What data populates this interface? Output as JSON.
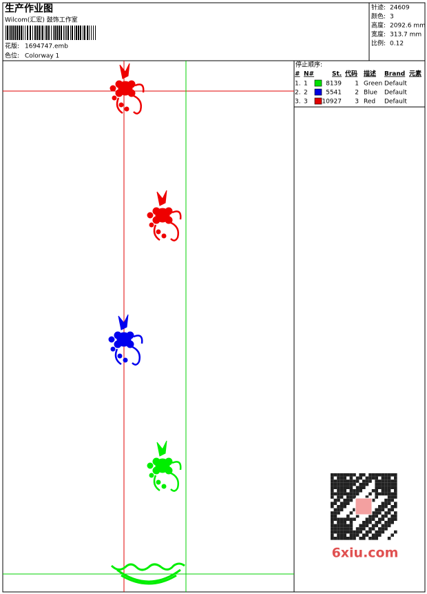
{
  "header": {
    "title": "生产作业图",
    "subtitle": "Wilcom(汇宏) 鼓饰工作室",
    "design_label": "花版:",
    "design": "1694747.emb",
    "colorway_label": "色位:",
    "colorway": "Colorway 1"
  },
  "stats": [
    {
      "label": "针迹:",
      "value": "24609"
    },
    {
      "label": "颜色:",
      "value": "3"
    },
    {
      "label": "高度:",
      "value": "2092.6 mm"
    },
    {
      "label": "宽度:",
      "value": "313.7 mm"
    },
    {
      "label": "比例:",
      "value": "0.12"
    }
  ],
  "stop_sequence": {
    "title": "停止顺序:",
    "columns": [
      "#",
      "N#",
      "St.",
      "代码",
      "描述",
      "Brand",
      "元素"
    ],
    "rows": [
      {
        "index": "1.",
        "n": "1",
        "color": "#00e000",
        "stitches": "8139",
        "code": "1",
        "description": "Green",
        "brand": "Default"
      },
      {
        "index": "2.",
        "n": "2",
        "color": "#0000e0",
        "stitches": "5541",
        "code": "2",
        "description": "Blue",
        "brand": "Default"
      },
      {
        "index": "3.",
        "n": "3",
        "color": "#e00000",
        "stitches": "10927",
        "code": "3",
        "description": "Red",
        "brand": "Default"
      }
    ]
  },
  "watermark": "6xiu.com"
}
